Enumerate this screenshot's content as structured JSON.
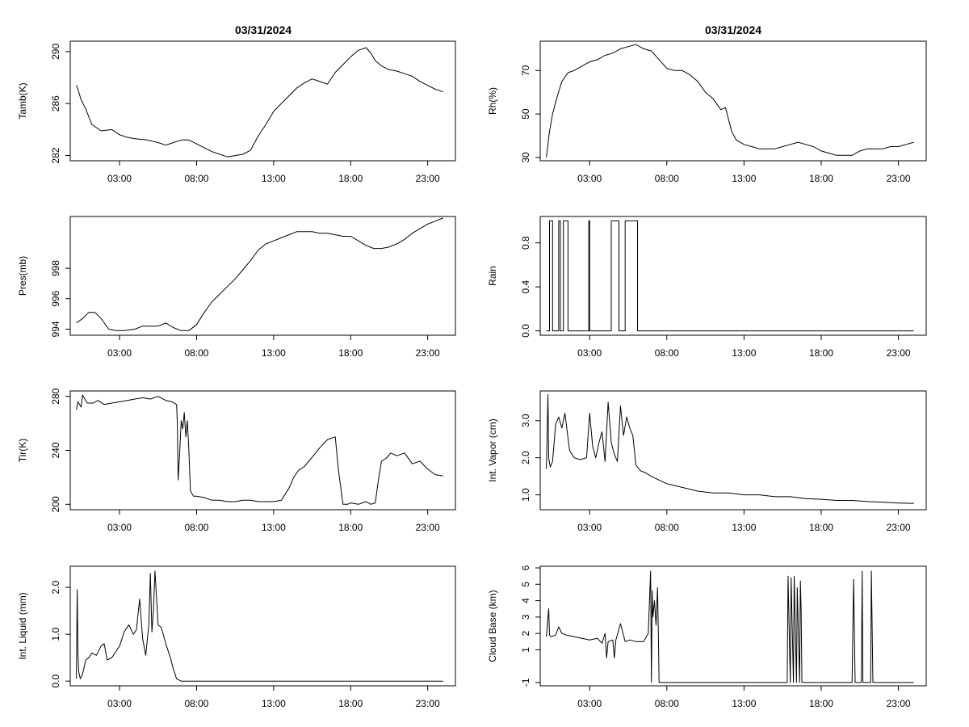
{
  "figure": {
    "left_title": "03/31/2024",
    "right_title": "03/31/2024"
  },
  "chart_data": [
    {
      "id": "tamb",
      "type": "line",
      "ylabel": "Tamb(K)",
      "x_ticks": [
        "03:00",
        "08:00",
        "13:00",
        "18:00",
        "23:00"
      ],
      "x_tick_hours": [
        3,
        8,
        13,
        18,
        23
      ],
      "xlim": [
        -0.2,
        24.8
      ],
      "y_ticks": [
        "282",
        "286",
        "290"
      ],
      "y_tick_values": [
        282,
        286,
        290
      ],
      "ylim": [
        281.6,
        290.8
      ],
      "series": [
        {
          "name": "Tamb",
          "x": [
            0.2,
            0.3,
            0.5,
            0.8,
            1.2,
            1.8,
            2.5,
            3.0,
            3.5,
            4.0,
            4.8,
            5.5,
            6.0,
            6.5,
            7.0,
            7.5,
            8.0,
            8.5,
            9.0,
            9.5,
            10.0,
            10.5,
            11.0,
            11.5,
            12.0,
            12.5,
            13.0,
            13.5,
            14.0,
            14.5,
            15.0,
            15.5,
            16.0,
            16.5,
            17.0,
            17.5,
            18.0,
            18.5,
            19.0,
            19.3,
            19.6,
            20.0,
            20.5,
            21.0,
            21.5,
            22.0,
            22.5,
            23.0,
            23.5,
            24.0
          ],
          "y": [
            287.4,
            287.1,
            286.3,
            285.6,
            284.4,
            283.9,
            284.0,
            283.6,
            283.4,
            283.3,
            283.2,
            283.0,
            282.8,
            283.0,
            283.2,
            283.2,
            282.9,
            282.6,
            282.3,
            282.1,
            281.9,
            282.0,
            282.1,
            282.4,
            283.5,
            284.4,
            285.4,
            286.0,
            286.6,
            287.2,
            287.6,
            287.9,
            287.7,
            287.5,
            288.4,
            289.0,
            289.6,
            290.1,
            290.3,
            289.9,
            289.3,
            288.9,
            288.6,
            288.5,
            288.3,
            288.1,
            287.7,
            287.4,
            287.1,
            286.9
          ]
        }
      ]
    },
    {
      "id": "pres",
      "type": "line",
      "ylabel": "Pres(mb)",
      "x_ticks": [
        "03:00",
        "08:00",
        "13:00",
        "18:00",
        "23:00"
      ],
      "x_tick_hours": [
        3,
        8,
        13,
        18,
        23
      ],
      "xlim": [
        -0.2,
        24.8
      ],
      "y_ticks": [
        "994",
        "996",
        "998"
      ],
      "y_tick_values": [
        994,
        996,
        998
      ],
      "ylim": [
        993.6,
        1001.4
      ],
      "series": [
        {
          "name": "Pres",
          "x": [
            0.2,
            0.6,
            1.0,
            1.4,
            1.8,
            2.3,
            2.8,
            3.3,
            4.0,
            4.5,
            5.0,
            5.5,
            6.0,
            6.5,
            7.0,
            7.5,
            8.0,
            8.5,
            9.0,
            9.5,
            10.0,
            10.5,
            11.0,
            11.5,
            12.0,
            12.5,
            13.0,
            13.5,
            14.0,
            14.5,
            15.0,
            15.5,
            16.0,
            16.5,
            17.0,
            17.5,
            18.0,
            18.5,
            19.0,
            19.5,
            20.0,
            20.5,
            21.0,
            21.5,
            22.0,
            22.5,
            23.0,
            23.5,
            24.0
          ],
          "y": [
            994.4,
            994.7,
            995.1,
            995.1,
            994.7,
            994.0,
            993.9,
            993.9,
            994.0,
            994.2,
            994.2,
            994.2,
            994.4,
            994.1,
            993.9,
            993.9,
            994.3,
            995.1,
            995.8,
            996.3,
            996.8,
            997.3,
            997.9,
            998.5,
            999.2,
            999.6,
            999.8,
            1000.0,
            1000.2,
            1000.4,
            1000.4,
            1000.4,
            1000.3,
            1000.3,
            1000.2,
            1000.1,
            1000.1,
            999.8,
            999.5,
            999.3,
            999.3,
            999.4,
            999.6,
            999.9,
            1000.3,
            1000.6,
            1000.9,
            1001.1,
            1001.3
          ]
        }
      ]
    },
    {
      "id": "tir",
      "type": "line",
      "ylabel": "Tir(K)",
      "x_ticks": [
        "03:00",
        "08:00",
        "13:00",
        "18:00",
        "23:00"
      ],
      "x_tick_hours": [
        3,
        8,
        13,
        18,
        23
      ],
      "xlim": [
        -0.2,
        24.8
      ],
      "y_ticks": [
        "200",
        "240",
        "280"
      ],
      "y_tick_values": [
        200,
        240,
        280
      ],
      "ylim": [
        196,
        284
      ],
      "series": [
        {
          "name": "Tir",
          "x": [
            0.2,
            0.3,
            0.5,
            0.6,
            0.9,
            1.3,
            1.6,
            2.0,
            2.5,
            3.0,
            3.5,
            4.0,
            4.5,
            5.0,
            5.5,
            6.0,
            6.4,
            6.7,
            6.75,
            6.8,
            6.9,
            7.0,
            7.1,
            7.2,
            7.3,
            7.4,
            7.5,
            7.6,
            7.8,
            8.0,
            8.5,
            9.0,
            9.5,
            10.0,
            10.5,
            11.0,
            11.5,
            12.0,
            12.5,
            13.0,
            13.5,
            14.0,
            14.3,
            14.6,
            15.0,
            15.5,
            16.0,
            16.5,
            17.0,
            17.2,
            17.5,
            17.8,
            18.0,
            18.5,
            19.0,
            19.3,
            19.6,
            19.8,
            20.0,
            20.3,
            20.6,
            21.0,
            21.5,
            22.0,
            22.5,
            23.0,
            23.5,
            24.0
          ],
          "y": [
            270,
            276,
            272,
            281,
            275,
            275,
            277,
            274,
            275,
            276,
            277,
            278,
            279,
            278,
            280,
            277,
            276,
            274,
            260,
            218,
            238,
            262,
            256,
            268,
            250,
            262,
            240,
            210,
            206,
            206,
            205,
            203,
            203,
            202,
            202,
            203,
            203,
            202,
            202,
            202,
            203,
            212,
            220,
            225,
            228,
            235,
            242,
            248,
            250,
            226,
            200,
            200,
            201,
            200,
            202,
            200,
            201,
            218,
            232,
            234,
            238,
            236,
            238,
            230,
            232,
            226,
            222,
            221
          ]
        }
      ]
    },
    {
      "id": "liquid",
      "type": "line",
      "ylabel": "Int. Liquid (mm)",
      "x_ticks": [
        "03:00",
        "08:00",
        "13:00",
        "18:00",
        "23:00"
      ],
      "x_tick_hours": [
        3,
        8,
        13,
        18,
        23
      ],
      "xlim": [
        -0.2,
        24.8
      ],
      "y_ticks": [
        "0.0",
        "1.0",
        "2.0"
      ],
      "y_tick_values": [
        0,
        1,
        2
      ],
      "ylim": [
        -0.1,
        2.45
      ],
      "series": [
        {
          "name": "Liquid",
          "x": [
            0.2,
            0.25,
            0.3,
            0.35,
            0.45,
            0.6,
            0.8,
            1.0,
            1.2,
            1.5,
            1.8,
            2.0,
            2.2,
            2.5,
            2.8,
            3.0,
            3.3,
            3.6,
            3.9,
            4.1,
            4.3,
            4.5,
            4.7,
            4.9,
            5.0,
            5.1,
            5.2,
            5.3,
            5.5,
            5.7,
            6.0,
            6.3,
            6.5,
            6.7,
            7.0,
            8.0,
            10.0,
            12.0,
            14.0,
            16.0,
            18.0,
            20.0,
            22.0,
            24.0
          ],
          "y": [
            0.05,
            1.95,
            0.6,
            0.2,
            0.05,
            0.15,
            0.45,
            0.5,
            0.6,
            0.55,
            0.75,
            0.8,
            0.45,
            0.5,
            0.65,
            0.75,
            1.05,
            1.2,
            1.0,
            1.1,
            1.75,
            0.9,
            0.55,
            1.2,
            2.3,
            1.05,
            1.5,
            2.35,
            1.2,
            1.15,
            0.8,
            0.5,
            0.25,
            0.05,
            0.0,
            0.0,
            0.0,
            0.0,
            0.0,
            0.0,
            0.0,
            0.0,
            0.0,
            0.0
          ]
        }
      ]
    },
    {
      "id": "rh",
      "type": "line",
      "ylabel": "Rh(%)",
      "x_ticks": [
        "03:00",
        "08:00",
        "13:00",
        "18:00",
        "23:00"
      ],
      "x_tick_hours": [
        3,
        8,
        13,
        18,
        23
      ],
      "xlim": [
        -0.2,
        24.8
      ],
      "y_ticks": [
        "30",
        "50",
        "70"
      ],
      "y_tick_values": [
        30,
        50,
        70
      ],
      "ylim": [
        28.5,
        83.5
      ],
      "series": [
        {
          "name": "Rh",
          "x": [
            0.2,
            0.4,
            0.6,
            0.9,
            1.2,
            1.6,
            2.0,
            2.5,
            3.0,
            3.5,
            4.0,
            4.5,
            5.0,
            5.5,
            6.0,
            6.5,
            7.0,
            7.5,
            8.0,
            8.5,
            9.0,
            9.5,
            10.0,
            10.5,
            11.0,
            11.5,
            11.8,
            12.2,
            12.5,
            13.0,
            13.5,
            14.0,
            14.5,
            15.0,
            15.5,
            16.0,
            16.5,
            17.0,
            17.5,
            18.0,
            18.5,
            19.0,
            19.5,
            20.0,
            20.5,
            21.0,
            21.5,
            22.0,
            22.5,
            23.0,
            23.5,
            24.0
          ],
          "y": [
            30,
            42,
            50,
            58,
            65,
            69,
            70,
            72,
            74,
            75,
            77,
            78,
            80,
            81,
            82,
            80,
            79,
            75,
            71,
            70,
            70,
            68,
            65,
            60,
            57,
            52,
            53,
            42,
            38,
            36,
            35,
            34,
            34,
            34,
            35,
            36,
            37,
            36,
            35,
            33,
            32,
            31,
            31,
            31,
            33,
            34,
            34,
            34,
            35,
            35,
            36,
            37
          ]
        }
      ]
    },
    {
      "id": "rain",
      "type": "step",
      "ylabel": "Rain",
      "x_ticks": [
        "03:00",
        "08:00",
        "13:00",
        "18:00",
        "23:00"
      ],
      "x_tick_hours": [
        3,
        8,
        13,
        18,
        23
      ],
      "xlim": [
        -0.2,
        24.8
      ],
      "y_ticks": [
        "0.0",
        "0.4",
        "0.8"
      ],
      "y_tick_values": [
        0,
        0.4,
        0.8
      ],
      "ylim": [
        -0.04,
        1.04
      ],
      "series": [
        {
          "name": "Rain",
          "x": [
            0.2,
            0.4,
            0.4,
            0.6,
            0.6,
            1.0,
            1.0,
            1.1,
            1.1,
            1.3,
            1.3,
            1.6,
            1.6,
            2.95,
            2.95,
            3.0,
            3.0,
            4.4,
            4.4,
            4.9,
            4.9,
            5.3,
            5.3,
            6.1,
            6.1,
            24.0
          ],
          "y": [
            0,
            0,
            1,
            1,
            0,
            0,
            1,
            1,
            0,
            0,
            1,
            1,
            0,
            0,
            1,
            1,
            0,
            0,
            1,
            1,
            0,
            0,
            1,
            1,
            0,
            0
          ]
        }
      ]
    },
    {
      "id": "vapor",
      "type": "line",
      "ylabel": "Int. Vapor (cm)",
      "x_ticks": [
        "03:00",
        "08:00",
        "13:00",
        "18:00",
        "23:00"
      ],
      "x_tick_hours": [
        3,
        8,
        13,
        18,
        23
      ],
      "xlim": [
        -0.2,
        24.8
      ],
      "y_ticks": [
        "1.0",
        "2.0",
        "3.0"
      ],
      "y_tick_values": [
        1,
        2,
        3
      ],
      "ylim": [
        0.6,
        3.8
      ],
      "series": [
        {
          "name": "Vapor",
          "x": [
            0.2,
            0.3,
            0.35,
            0.45,
            0.6,
            0.8,
            1.0,
            1.2,
            1.4,
            1.7,
            2.0,
            2.4,
            2.8,
            3.0,
            3.2,
            3.4,
            3.6,
            3.8,
            4.0,
            4.2,
            4.4,
            4.6,
            4.8,
            5.0,
            5.2,
            5.4,
            5.6,
            5.8,
            6.0,
            6.3,
            6.6,
            7.0,
            7.5,
            8.0,
            8.5,
            9.0,
            10.0,
            11.0,
            12.0,
            13.0,
            14.0,
            15.0,
            16.0,
            17.0,
            18.0,
            19.0,
            20.0,
            21.0,
            22.0,
            23.0,
            24.0
          ],
          "y": [
            1.7,
            3.7,
            2.0,
            1.75,
            1.9,
            2.9,
            3.1,
            2.8,
            3.2,
            2.2,
            2.0,
            1.95,
            2.0,
            3.2,
            2.3,
            2.0,
            2.4,
            2.7,
            1.9,
            3.5,
            2.4,
            2.1,
            1.9,
            3.4,
            2.6,
            3.1,
            2.8,
            2.6,
            1.8,
            1.65,
            1.6,
            1.5,
            1.4,
            1.3,
            1.25,
            1.2,
            1.1,
            1.05,
            1.05,
            1.0,
            1.0,
            0.95,
            0.95,
            0.9,
            0.88,
            0.85,
            0.85,
            0.82,
            0.8,
            0.78,
            0.77
          ]
        }
      ]
    },
    {
      "id": "cloud",
      "type": "line",
      "ylabel": "Cloud Base (km)",
      "x_ticks": [
        "03:00",
        "08:00",
        "13:00",
        "18:00",
        "23:00"
      ],
      "x_tick_hours": [
        3,
        8,
        13,
        18,
        23
      ],
      "xlim": [
        -0.2,
        24.8
      ],
      "y_ticks": [
        "-1",
        "1",
        "2",
        "3",
        "4",
        "5",
        "6"
      ],
      "y_tick_values": [
        -1,
        1,
        2,
        3,
        4,
        5,
        6
      ],
      "ylim": [
        -1.2,
        6.1
      ],
      "series": [
        {
          "name": "Cloud Base",
          "x": [
            0.2,
            0.35,
            0.4,
            0.5,
            0.8,
            1.0,
            1.2,
            1.5,
            2.0,
            2.5,
            3.0,
            3.5,
            3.8,
            4.0,
            4.1,
            4.2,
            4.5,
            4.6,
            4.7,
            5.0,
            5.3,
            5.6,
            6.0,
            6.5,
            6.8,
            6.95,
            7.0,
            7.05,
            7.1,
            7.2,
            7.3,
            7.4,
            7.45,
            7.5,
            8.0,
            12.0,
            15.8,
            15.85,
            16.0,
            16.05,
            16.2,
            16.25,
            16.4,
            16.45,
            16.6,
            16.65,
            16.7,
            16.75,
            17.0,
            20.0,
            20.1,
            20.2,
            20.25,
            20.6,
            20.65,
            20.7,
            20.75,
            21.2,
            21.25,
            21.35,
            21.4,
            24.0
          ],
          "y": [
            1.8,
            3.5,
            1.9,
            1.8,
            1.9,
            2.4,
            2.0,
            1.9,
            1.8,
            1.7,
            1.6,
            1.7,
            1.4,
            2.0,
            0.5,
            1.5,
            1.6,
            0.5,
            1.6,
            2.6,
            1.5,
            1.6,
            1.5,
            1.5,
            2.0,
            5.8,
            -1.0,
            4.6,
            3.0,
            4.0,
            2.5,
            4.8,
            2.0,
            -1.0,
            -1.0,
            -1.0,
            -1.0,
            5.5,
            -1.0,
            5.4,
            -1.0,
            5.5,
            -1.0,
            4.8,
            -1.0,
            5.2,
            3.5,
            -1.0,
            -1.0,
            -1.0,
            5.3,
            -1.0,
            -1.0,
            -1.0,
            5.8,
            -1.0,
            -1.0,
            -1.0,
            5.8,
            -1.0,
            -1.0,
            -1.0
          ]
        }
      ]
    }
  ]
}
